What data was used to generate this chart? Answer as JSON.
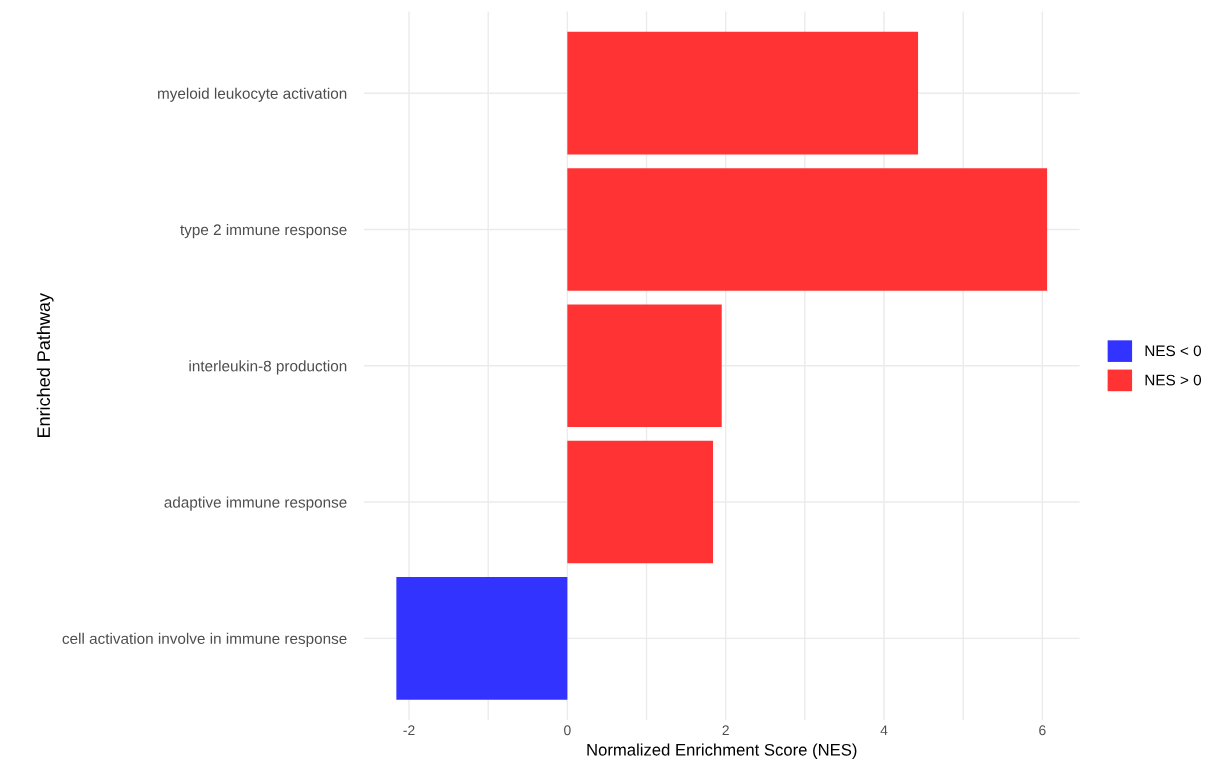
{
  "chart_data": {
    "type": "bar",
    "orientation": "horizontal",
    "xlabel": "Normalized Enrichment Score (NES)",
    "ylabel": "Enriched Pathway",
    "categories": [
      "myeloid leukocyte activation",
      "type 2 immune response",
      "interleukin-8 production",
      "adaptive immune response",
      "cell activation involve in immune response"
    ],
    "series": [
      {
        "name": "NES < 0",
        "color": "#3333ff",
        "values": [
          null,
          null,
          null,
          null,
          -2.16
        ]
      },
      {
        "name": "NES > 0",
        "color": "#ff3333",
        "values": [
          4.43,
          6.06,
          1.95,
          1.84,
          null
        ]
      }
    ],
    "xlim": [
      -2.57,
      6.47
    ],
    "xticks": [
      -2,
      {
        "value": -1,
        "label": null
      },
      0,
      {
        "value": 1,
        "label": null
      },
      2,
      {
        "value": 3,
        "label": null
      },
      4,
      {
        "value": 5,
        "label": null
      },
      6
    ],
    "grid": true,
    "legend": "right"
  }
}
